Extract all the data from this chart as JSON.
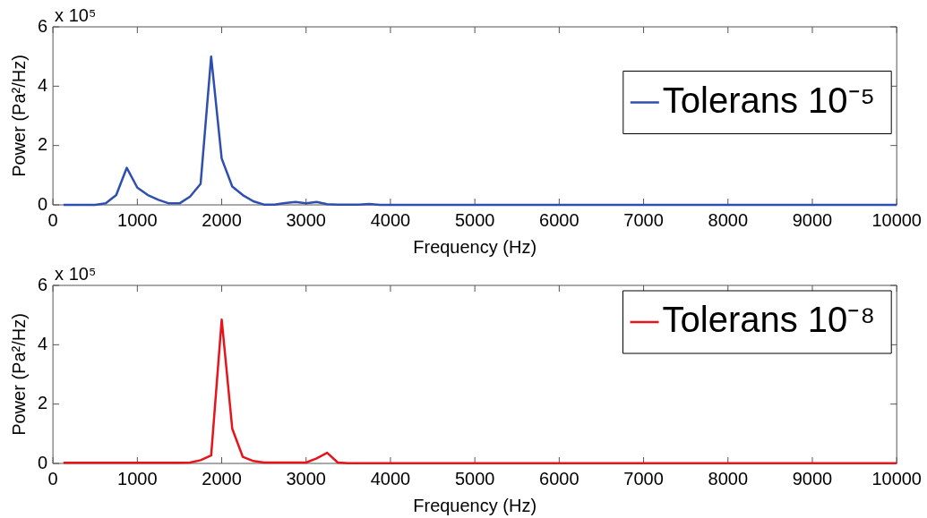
{
  "chart_data": [
    {
      "type": "line",
      "xlabel": "Frequency (Hz)",
      "ylabel": "Power (Pa²/Hz)",
      "annotations": [
        "x 10⁵"
      ],
      "x": [
        125,
        250,
        375,
        500,
        625,
        750,
        875,
        1000,
        1125,
        1250,
        1375,
        1500,
        1625,
        1750,
        1875,
        2000,
        2125,
        2250,
        2375,
        2500,
        2625,
        2750,
        2875,
        3000,
        3125,
        3250,
        3375,
        3500,
        3625,
        3750,
        3875,
        4000,
        5000,
        6000,
        7000,
        8000,
        9000,
        10000
      ],
      "series": [
        {
          "name": "Tolerans 10⁻⁵",
          "color": "#2e4fb0",
          "values": [
            0,
            0,
            0,
            0,
            0.05,
            0.33,
            1.25,
            0.58,
            0.33,
            0.17,
            0.05,
            0.05,
            0.28,
            0.71,
            5.0,
            1.56,
            0.62,
            0.33,
            0.12,
            0.01,
            0.01,
            0.06,
            0.1,
            0.05,
            0.1,
            0.02,
            0.01,
            0.01,
            0.01,
            0.03,
            0,
            0,
            0,
            0,
            0,
            0,
            0,
            0
          ]
        }
      ],
      "xlim": [
        0,
        10000
      ],
      "xticks": [
        0,
        1000,
        2000,
        3000,
        4000,
        5000,
        6000,
        7000,
        8000,
        9000,
        10000
      ],
      "ylim": [
        0,
        6
      ],
      "yticks": [
        0,
        2,
        4,
        6
      ],
      "grid": false,
      "legend": "right",
      "marker": "none",
      "line_style": "solid"
    },
    {
      "type": "line",
      "xlabel": "Frequency (Hz)",
      "ylabel": "Power (Pa²/Hz)",
      "annotations": [
        "x 10⁵"
      ],
      "x": [
        125,
        250,
        375,
        500,
        625,
        750,
        875,
        1000,
        1125,
        1250,
        1375,
        1500,
        1625,
        1750,
        1875,
        2000,
        2125,
        2250,
        2375,
        2500,
        2625,
        2750,
        2875,
        3000,
        3125,
        3250,
        3375,
        3500,
        4000,
        5000,
        6000,
        7000,
        8000,
        9000,
        10000
      ],
      "series": [
        {
          "name": "Tolerans 10⁻⁸",
          "color": "#e8141c",
          "values": [
            0.02,
            0.02,
            0.02,
            0.02,
            0.02,
            0.02,
            0.02,
            0.02,
            0.02,
            0.02,
            0.02,
            0.02,
            0.03,
            0.11,
            0.27,
            4.85,
            1.17,
            0.22,
            0.08,
            0.03,
            0.03,
            0.03,
            0.03,
            0.03,
            0.17,
            0.36,
            0.03,
            0.01,
            0.01,
            0.01,
            0.01,
            0.01,
            0.01,
            0.01,
            0.01
          ]
        }
      ],
      "xlim": [
        0,
        10000
      ],
      "xticks": [
        0,
        1000,
        2000,
        3000,
        4000,
        5000,
        6000,
        7000,
        8000,
        9000,
        10000
      ],
      "ylim": [
        0,
        6
      ],
      "yticks": [
        0,
        2,
        4,
        6
      ],
      "grid": false,
      "legend": "top right",
      "marker": "none",
      "line_style": "solid"
    }
  ]
}
